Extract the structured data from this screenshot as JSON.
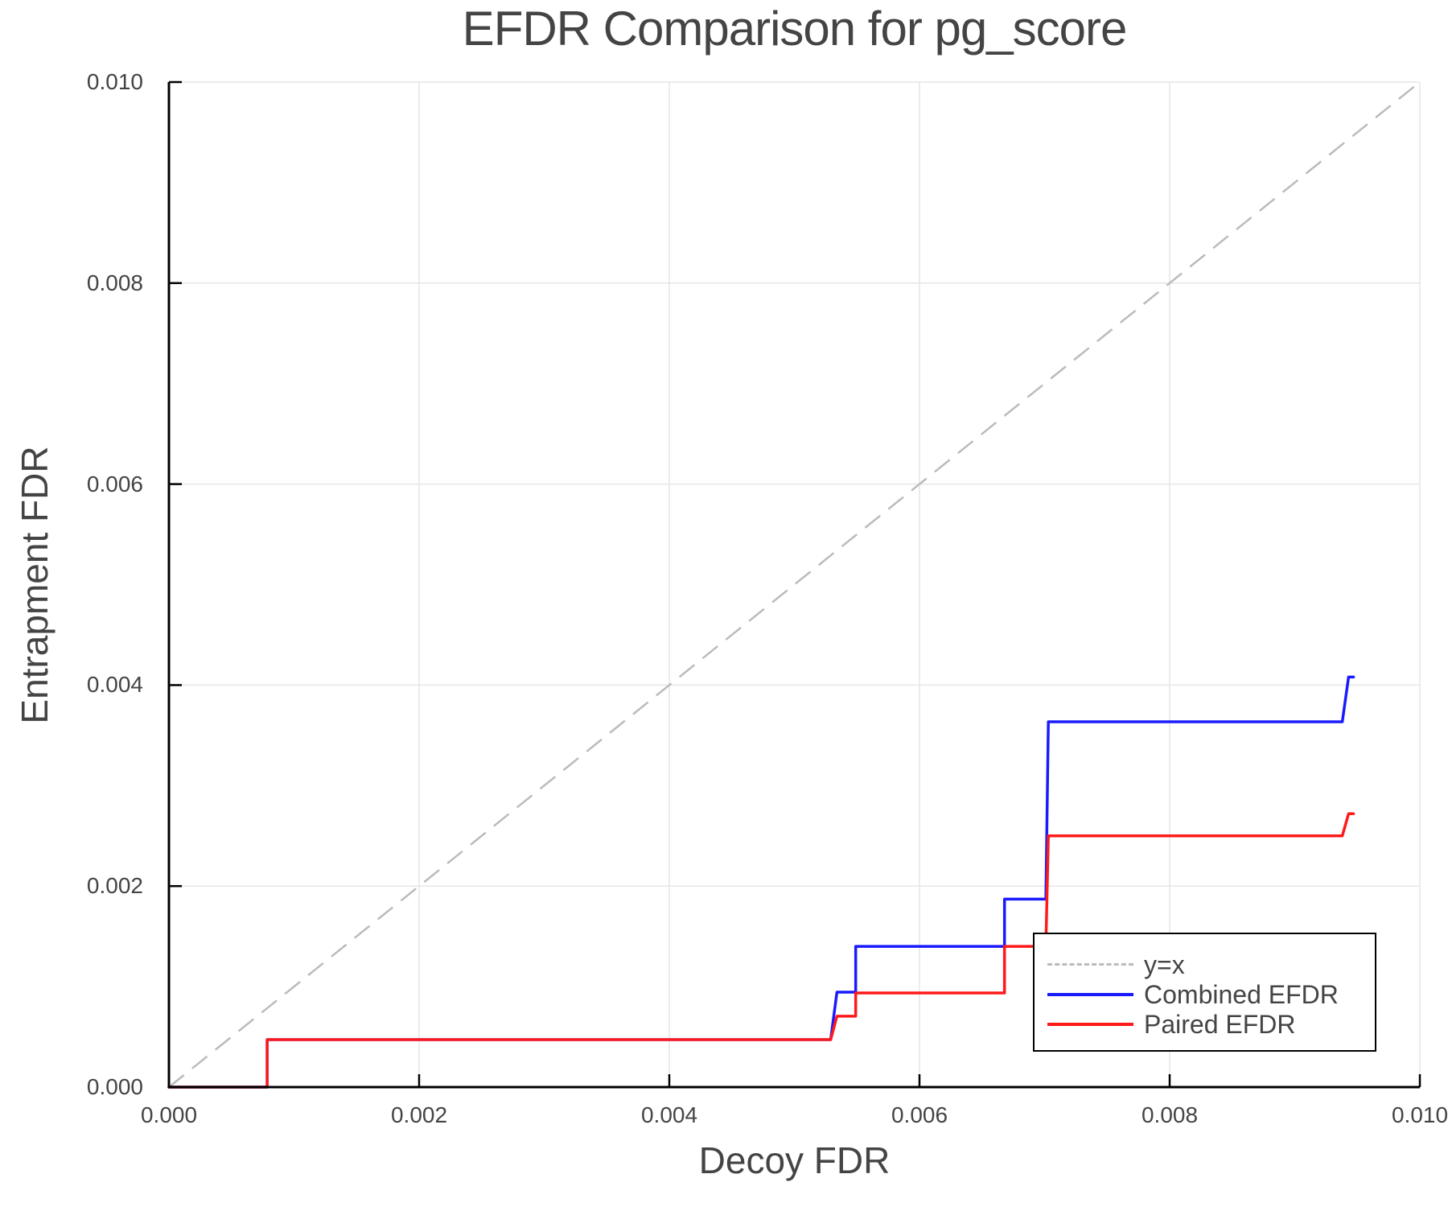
{
  "chart": {
    "title": "EFDR Comparison for pg_score",
    "xlabel": "Decoy FDR",
    "ylabel": "Entrapment FDR",
    "x_ticks": [
      "0.000",
      "0.002",
      "0.004",
      "0.006",
      "0.008",
      "0.010"
    ],
    "y_ticks": [
      "0.000",
      "0.002",
      "0.004",
      "0.006",
      "0.008",
      "0.010"
    ],
    "legend": [
      {
        "label": "y=x",
        "color": "#bbbbbb",
        "style": "dashed"
      },
      {
        "label": "Combined EFDR",
        "color": "#1a1aff",
        "style": "solid"
      },
      {
        "label": "Paired EFDR",
        "color": "#ff1a1a",
        "style": "solid"
      }
    ]
  },
  "chart_data": {
    "type": "line",
    "title": "EFDR Comparison for pg_score",
    "xlabel": "Decoy FDR",
    "ylabel": "Entrapment FDR",
    "xlim": [
      0.0,
      0.01
    ],
    "ylim": [
      0.0,
      0.01
    ],
    "x_tick_values": [
      0.0,
      0.002,
      0.004,
      0.006,
      0.008,
      0.01
    ],
    "y_tick_values": [
      0.0,
      0.002,
      0.004,
      0.006,
      0.008,
      0.01
    ],
    "grid": true,
    "legend_position": "bottom-right",
    "series": [
      {
        "name": "y=x",
        "color": "#bbbbbb",
        "style": "dashed",
        "x": [
          0.0,
          0.01
        ],
        "y": [
          0.0,
          0.01
        ]
      },
      {
        "name": "Combined EFDR",
        "color": "#1a1aff",
        "style": "solid",
        "x": [
          0.0,
          0.000785,
          0.000785,
          0.00529,
          0.00534,
          0.00549,
          0.00549,
          0.00668,
          0.00668,
          0.00701,
          0.00703,
          0.00938,
          0.00943,
          0.00947
        ],
        "y": [
          0.0,
          0.0,
          0.000472,
          0.000472,
          0.000945,
          0.000945,
          0.0014,
          0.0014,
          0.00187,
          0.00187,
          0.003635,
          0.003635,
          0.00408,
          0.00408
        ]
      },
      {
        "name": "Paired EFDR",
        "color": "#ff1a1a",
        "style": "solid",
        "x": [
          0.0,
          0.000785,
          0.000785,
          0.00529,
          0.00534,
          0.00549,
          0.00549,
          0.00668,
          0.00668,
          0.00701,
          0.00703,
          0.00938,
          0.00943,
          0.00947
        ],
        "y": [
          0.0,
          0.0,
          0.000472,
          0.000472,
          0.000705,
          0.000705,
          0.000937,
          0.000937,
          0.0014,
          0.0014,
          0.0025,
          0.0025,
          0.00272,
          0.00272
        ]
      }
    ]
  }
}
